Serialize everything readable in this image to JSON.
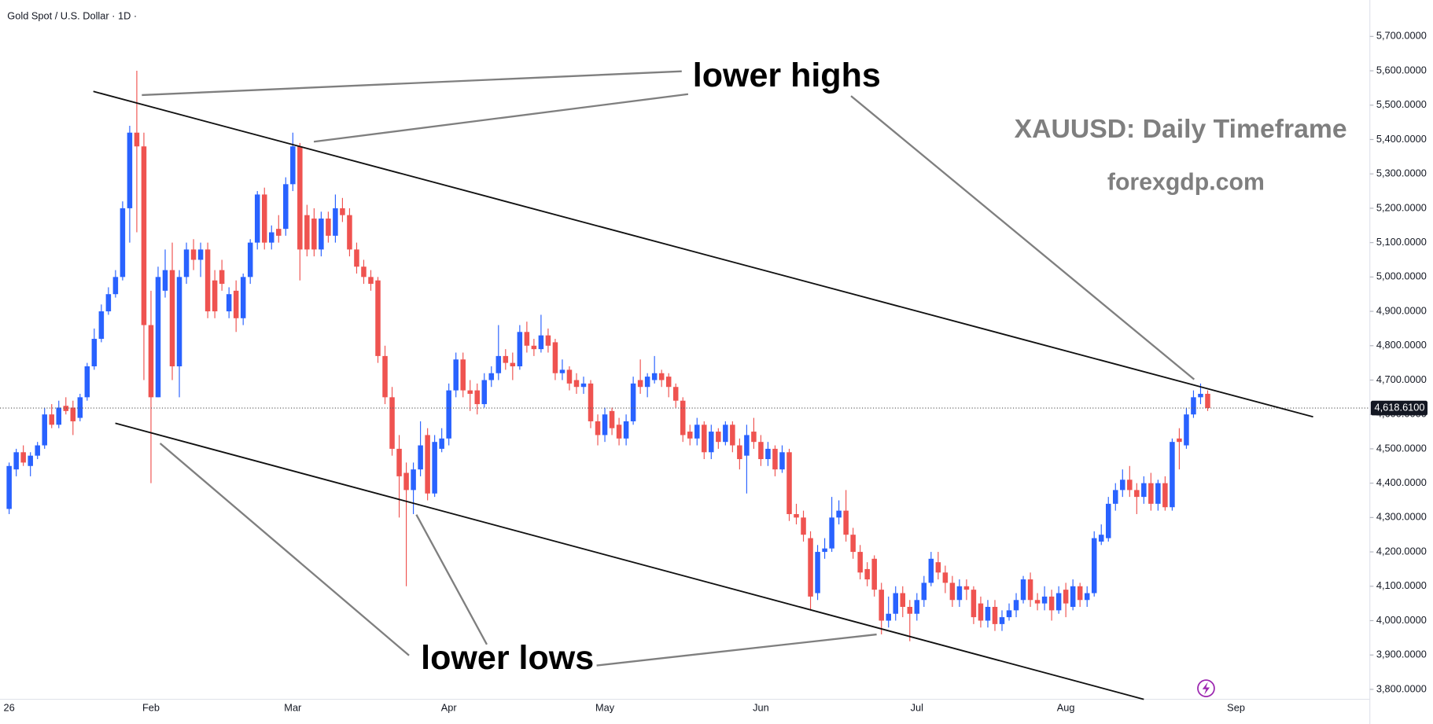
{
  "chart_data": {
    "type": "candlestick",
    "title": "Gold Spot / U.S. Dollar · 1D ·",
    "annotations": [
      "lower highs",
      "XAUUSD: Daily Timeframe",
      "forexgdp.com",
      "lower lows"
    ],
    "up_color": "#2962ff",
    "down_color": "#ef5350",
    "ylim": [
      3771,
      5806
    ],
    "yticks": [
      {
        "value": 3800,
        "label": "3,800.0000"
      },
      {
        "value": 3900,
        "label": "3,900.0000"
      },
      {
        "value": 4000,
        "label": "4,000.0000"
      },
      {
        "value": 4100,
        "label": "4,100.0000"
      },
      {
        "value": 4200,
        "label": "4,200.0000"
      },
      {
        "value": 4300,
        "label": "4,300.0000"
      },
      {
        "value": 4400,
        "label": "4,400.0000"
      },
      {
        "value": 4500,
        "label": "4,500.0000"
      },
      {
        "value": 4600,
        "label": "4,600.0000"
      },
      {
        "value": 4700,
        "label": "4,700.0000"
      },
      {
        "value": 4800,
        "label": "4,800.0000"
      },
      {
        "value": 4900,
        "label": "4,900.0000"
      },
      {
        "value": 5000,
        "label": "5,000.0000"
      },
      {
        "value": 5100,
        "label": "5,100.0000"
      },
      {
        "value": 5200,
        "label": "5,200.0000"
      },
      {
        "value": 5300,
        "label": "5,300.0000"
      },
      {
        "value": 5400,
        "label": "5,400.0000"
      },
      {
        "value": 5500,
        "label": "5,500.0000"
      },
      {
        "value": 5600,
        "label": "5,600.0000"
      },
      {
        "value": 5700,
        "label": "5,700.0000"
      }
    ],
    "last_price": {
      "value": 4618.61,
      "label": "4,618.6100"
    },
    "categories": [
      "26",
      null,
      null,
      null,
      null,
      null,
      null,
      null,
      null,
      null,
      null,
      null,
      null,
      null,
      null,
      null,
      null,
      null,
      null,
      null,
      "Feb",
      null,
      null,
      null,
      null,
      null,
      null,
      null,
      null,
      null,
      null,
      null,
      null,
      null,
      null,
      null,
      null,
      null,
      null,
      null,
      "Mar",
      null,
      null,
      null,
      null,
      null,
      null,
      null,
      null,
      null,
      null,
      null,
      null,
      null,
      null,
      null,
      null,
      null,
      null,
      null,
      null,
      null,
      "Apr",
      null,
      null,
      null,
      null,
      null,
      null,
      null,
      null,
      null,
      null,
      null,
      null,
      null,
      null,
      null,
      null,
      null,
      null,
      null,
      null,
      null,
      "May",
      null,
      null,
      null,
      null,
      null,
      null,
      null,
      null,
      null,
      null,
      null,
      null,
      null,
      null,
      null,
      null,
      null,
      null,
      null,
      null,
      null,
      "Jun",
      null,
      null,
      null,
      null,
      null,
      null,
      null,
      null,
      null,
      null,
      null,
      null,
      null,
      null,
      null,
      null,
      null,
      null,
      null,
      null,
      null,
      "Jul",
      null,
      null,
      null,
      null,
      null,
      null,
      null,
      null,
      null,
      null,
      null,
      null,
      null,
      null,
      null,
      null,
      null,
      null,
      null,
      null,
      "Aug",
      null,
      null,
      null,
      null,
      null,
      null,
      null,
      null,
      null,
      null,
      null,
      null,
      null,
      null,
      null,
      null,
      null,
      null,
      null,
      null,
      null,
      null,
      null,
      "Sep",
      null,
      null,
      null,
      null,
      null,
      null,
      null,
      null,
      null,
      null,
      null,
      null,
      null,
      null,
      null,
      null,
      null,
      null,
      null
    ],
    "candles": [
      [
        4325,
        4460,
        4310,
        4450
      ],
      [
        4440,
        4500,
        4420,
        4490
      ],
      [
        4490,
        4510,
        4450,
        4460
      ],
      [
        4450,
        4490,
        4420,
        4480
      ],
      [
        4480,
        4520,
        4470,
        4510
      ],
      [
        4510,
        4620,
        4500,
        4600
      ],
      [
        4600,
        4630,
        4560,
        4570
      ],
      [
        4570,
        4640,
        4560,
        4620
      ],
      [
        4625,
        4650,
        4600,
        4610
      ],
      [
        4620,
        4640,
        4540,
        4580
      ],
      [
        4590,
        4660,
        4580,
        4650
      ],
      [
        4650,
        4750,
        4640,
        4740
      ],
      [
        4740,
        4850,
        4730,
        4820
      ],
      [
        4820,
        4920,
        4810,
        4900
      ],
      [
        4900,
        4970,
        4890,
        4950
      ],
      [
        4950,
        5020,
        4940,
        5000
      ],
      [
        5000,
        5220,
        4990,
        5200
      ],
      [
        5200,
        5440,
        5100,
        5420
      ],
      [
        5420,
        5600,
        5130,
        5380
      ],
      [
        5380,
        5420,
        4700,
        4860
      ],
      [
        4860,
        4960,
        4400,
        4650
      ],
      [
        4650,
        5030,
        4650,
        5000
      ],
      [
        4960,
        5080,
        4940,
        5020
      ],
      [
        5020,
        5100,
        4700,
        4740
      ],
      [
        4740,
        5020,
        4650,
        5000
      ],
      [
        5000,
        5100,
        4980,
        5080
      ],
      [
        5080,
        5110,
        5020,
        5050
      ],
      [
        5050,
        5100,
        5000,
        5080
      ],
      [
        5080,
        5100,
        4880,
        4900
      ],
      [
        4990,
        5020,
        4880,
        4900
      ],
      [
        5020,
        5050,
        4960,
        4980
      ],
      [
        4900,
        4970,
        4880,
        4950
      ],
      [
        4960,
        4990,
        4840,
        4880
      ],
      [
        4880,
        5010,
        4860,
        5000
      ],
      [
        5000,
        5110,
        4980,
        5100
      ],
      [
        5100,
        5250,
        5080,
        5240
      ],
      [
        5240,
        5260,
        5080,
        5100
      ],
      [
        5100,
        5150,
        5080,
        5130
      ],
      [
        5140,
        5180,
        5100,
        5120
      ],
      [
        5140,
        5290,
        5120,
        5270
      ],
      [
        5270,
        5420,
        5250,
        5380
      ],
      [
        5380,
        5390,
        4990,
        5080
      ],
      [
        5180,
        5210,
        5060,
        5080
      ],
      [
        5170,
        5200,
        5060,
        5080
      ],
      [
        5080,
        5190,
        5060,
        5170
      ],
      [
        5170,
        5190,
        5100,
        5120
      ],
      [
        5120,
        5240,
        5100,
        5200
      ],
      [
        5200,
        5230,
        5160,
        5180
      ],
      [
        5180,
        5200,
        5060,
        5080
      ],
      [
        5080,
        5100,
        5010,
        5030
      ],
      [
        5030,
        5050,
        4980,
        5000
      ],
      [
        5000,
        5020,
        4960,
        4980
      ],
      [
        4990,
        5000,
        4750,
        4770
      ],
      [
        4770,
        4800,
        4630,
        4650
      ],
      [
        4650,
        4680,
        4480,
        4500
      ],
      [
        4500,
        4540,
        4300,
        4420
      ],
      [
        4430,
        4460,
        4100,
        4380
      ],
      [
        4380,
        4460,
        4310,
        4440
      ],
      [
        4440,
        4580,
        4420,
        4510
      ],
      [
        4540,
        4560,
        4350,
        4370
      ],
      [
        4370,
        4540,
        4360,
        4520
      ],
      [
        4500,
        4560,
        4490,
        4530
      ],
      [
        4530,
        4690,
        4510,
        4670
      ],
      [
        4670,
        4780,
        4650,
        4760
      ],
      [
        4760,
        4780,
        4650,
        4670
      ],
      [
        4670,
        4700,
        4610,
        4660
      ],
      [
        4670,
        4690,
        4600,
        4630
      ],
      [
        4630,
        4720,
        4620,
        4700
      ],
      [
        4700,
        4740,
        4680,
        4720
      ],
      [
        4720,
        4860,
        4700,
        4770
      ],
      [
        4770,
        4790,
        4730,
        4750
      ],
      [
        4750,
        4780,
        4700,
        4740
      ],
      [
        4740,
        4860,
        4730,
        4840
      ],
      [
        4840,
        4870,
        4780,
        4800
      ],
      [
        4800,
        4820,
        4770,
        4790
      ],
      [
        4790,
        4890,
        4780,
        4830
      ],
      [
        4830,
        4850,
        4780,
        4800
      ],
      [
        4810,
        4820,
        4700,
        4720
      ],
      [
        4720,
        4760,
        4700,
        4730
      ],
      [
        4730,
        4740,
        4670,
        4690
      ],
      [
        4700,
        4720,
        4660,
        4680
      ],
      [
        4680,
        4710,
        4660,
        4690
      ],
      [
        4690,
        4700,
        4560,
        4580
      ],
      [
        4580,
        4600,
        4510,
        4540
      ],
      [
        4540,
        4620,
        4520,
        4600
      ],
      [
        4610,
        4620,
        4540,
        4560
      ],
      [
        4570,
        4590,
        4510,
        4530
      ],
      [
        4530,
        4600,
        4510,
        4580
      ],
      [
        4580,
        4710,
        4570,
        4690
      ],
      [
        4700,
        4760,
        4660,
        4680
      ],
      [
        4680,
        4720,
        4650,
        4710
      ],
      [
        4700,
        4770,
        4690,
        4720
      ],
      [
        4720,
        4730,
        4680,
        4700
      ],
      [
        4710,
        4720,
        4650,
        4680
      ],
      [
        4680,
        4690,
        4620,
        4640
      ],
      [
        4640,
        4650,
        4520,
        4540
      ],
      [
        4550,
        4570,
        4510,
        4530
      ],
      [
        4530,
        4590,
        4510,
        4570
      ],
      [
        4570,
        4580,
        4470,
        4490
      ],
      [
        4490,
        4570,
        4470,
        4550
      ],
      [
        4550,
        4560,
        4500,
        4520
      ],
      [
        4520,
        4580,
        4510,
        4570
      ],
      [
        4570,
        4580,
        4490,
        4510
      ],
      [
        4510,
        4530,
        4440,
        4470
      ],
      [
        4480,
        4570,
        4370,
        4540
      ],
      [
        4550,
        4590,
        4500,
        4520
      ],
      [
        4520,
        4540,
        4450,
        4470
      ],
      [
        4470,
        4520,
        4450,
        4500
      ],
      [
        4500,
        4510,
        4420,
        4440
      ],
      [
        4440,
        4510,
        4430,
        4490
      ],
      [
        4490,
        4500,
        4290,
        4310
      ],
      [
        4310,
        4340,
        4280,
        4300
      ],
      [
        4300,
        4320,
        4230,
        4250
      ],
      [
        4240,
        4260,
        4030,
        4070
      ],
      [
        4080,
        4220,
        4060,
        4200
      ],
      [
        4200,
        4240,
        4180,
        4210
      ],
      [
        4210,
        4360,
        4200,
        4300
      ],
      [
        4300,
        4350,
        4280,
        4320
      ],
      [
        4320,
        4380,
        4230,
        4250
      ],
      [
        4250,
        4270,
        4180,
        4200
      ],
      [
        4200,
        4220,
        4120,
        4140
      ],
      [
        4150,
        4170,
        4100,
        4120
      ],
      [
        4180,
        4190,
        4070,
        4090
      ],
      [
        4090,
        4110,
        3960,
        4000
      ],
      [
        4000,
        4070,
        3980,
        4020
      ],
      [
        4020,
        4100,
        4000,
        4080
      ],
      [
        4080,
        4100,
        4010,
        4040
      ],
      [
        4040,
        4060,
        3940,
        4020
      ],
      [
        4020,
        4080,
        4000,
        4060
      ],
      [
        4060,
        4130,
        4040,
        4110
      ],
      [
        4110,
        4200,
        4100,
        4180
      ],
      [
        4170,
        4200,
        4120,
        4140
      ],
      [
        4140,
        4160,
        4080,
        4110
      ],
      [
        4110,
        4130,
        4040,
        4060
      ],
      [
        4060,
        4120,
        4040,
        4100
      ],
      [
        4100,
        4120,
        4060,
        4090
      ],
      [
        4090,
        4100,
        3990,
        4010
      ],
      [
        4050,
        4070,
        3980,
        4000
      ],
      [
        4000,
        4060,
        3980,
        4040
      ],
      [
        4040,
        4060,
        3970,
        3990
      ],
      [
        3990,
        4030,
        3970,
        4010
      ],
      [
        4010,
        4050,
        4000,
        4030
      ],
      [
        4030,
        4080,
        4010,
        4060
      ],
      [
        4060,
        4130,
        4050,
        4120
      ],
      [
        4120,
        4140,
        4040,
        4060
      ],
      [
        4060,
        4080,
        4030,
        4050
      ],
      [
        4050,
        4100,
        4030,
        4070
      ],
      [
        4070,
        4090,
        4000,
        4030
      ],
      [
        4030,
        4100,
        4020,
        4080
      ],
      [
        4090,
        4110,
        4010,
        4050
      ],
      [
        4040,
        4120,
        4030,
        4100
      ],
      [
        4100,
        4110,
        4040,
        4060
      ],
      [
        4060,
        4100,
        4040,
        4080
      ],
      [
        4080,
        4260,
        4070,
        4240
      ],
      [
        4230,
        4280,
        4220,
        4250
      ],
      [
        4240,
        4360,
        4230,
        4340
      ],
      [
        4340,
        4400,
        4320,
        4380
      ],
      [
        4380,
        4440,
        4360,
        4410
      ],
      [
        4410,
        4450,
        4360,
        4380
      ],
      [
        4380,
        4400,
        4310,
        4360
      ],
      [
        4360,
        4420,
        4340,
        4400
      ],
      [
        4400,
        4430,
        4320,
        4340
      ],
      [
        4340,
        4410,
        4320,
        4400
      ],
      [
        4400,
        4420,
        4320,
        4330
      ],
      [
        4330,
        4530,
        4320,
        4520
      ],
      [
        4530,
        4560,
        4440,
        4520
      ],
      [
        4510,
        4620,
        4500,
        4600
      ],
      [
        4600,
        4670,
        4590,
        4650
      ],
      [
        4650,
        4690,
        4630,
        4660
      ],
      [
        4660,
        4670,
        4610,
        4618.61
      ],
      null,
      null,
      null,
      null,
      null,
      null,
      null,
      null,
      null,
      null,
      null,
      null,
      null,
      null,
      null,
      null,
      null,
      null,
      null,
      null,
      null,
      null,
      null
    ]
  }
}
